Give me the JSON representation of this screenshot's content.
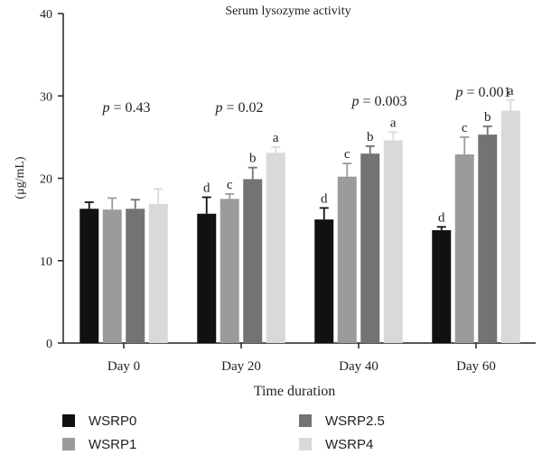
{
  "chart_data": {
    "type": "bar",
    "title": "Serum lysozyme activity",
    "xlabel": "Time duration",
    "ylabel": "(μg/mL)",
    "ylim": [
      0,
      40
    ],
    "yticks": [
      "0",
      "10",
      "20",
      "30",
      "40"
    ],
    "categories": [
      "Day 0",
      "Day 20",
      "Day 40",
      "Day 60"
    ],
    "p_values": [
      "p = 0.43",
      "p = 0.02",
      "p = 0.003",
      "p = 0.001"
    ],
    "legend_position": "bottom",
    "series": [
      {
        "name": "WSRP0",
        "color": "#111111",
        "values": [
          16.3,
          15.7,
          15.0,
          13.7
        ],
        "errors": [
          0.8,
          2.0,
          1.4,
          0.4
        ],
        "letters": [
          "",
          "d",
          "d",
          "d"
        ]
      },
      {
        "name": "WSRP1",
        "color": "#9b9b9b",
        "values": [
          16.2,
          17.5,
          20.2,
          22.9
        ],
        "errors": [
          1.4,
          0.6,
          1.6,
          2.1
        ],
        "letters": [
          "",
          "c",
          "c",
          "c"
        ]
      },
      {
        "name": "WSRP2.5",
        "color": "#737373",
        "values": [
          16.3,
          19.9,
          23.0,
          25.3
        ],
        "errors": [
          1.1,
          1.4,
          0.9,
          1.0
        ],
        "letters": [
          "",
          "b",
          "b",
          "b"
        ]
      },
      {
        "name": "WSRP4",
        "color": "#d9d9d9",
        "values": [
          16.9,
          23.1,
          24.6,
          28.2
        ],
        "errors": [
          1.8,
          0.7,
          1.0,
          1.3
        ],
        "letters": [
          "",
          "a",
          "a",
          "a"
        ]
      }
    ]
  }
}
